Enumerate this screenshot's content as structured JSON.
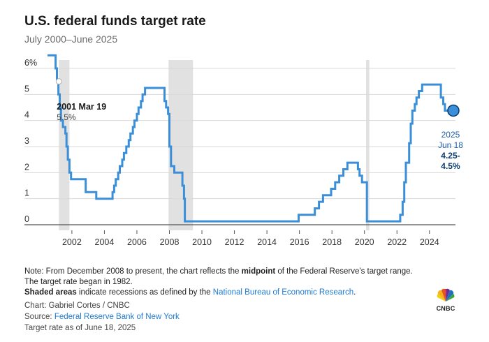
{
  "header": {
    "title": "U.S. federal funds target rate",
    "subtitle": "July 2000–June 2025"
  },
  "chart_data": {
    "type": "line",
    "title": "U.S. federal funds target rate",
    "subtitle": "July 2000–June 2025",
    "xlabel": "",
    "ylabel": "",
    "x_ticks": [
      "2002",
      "2004",
      "2006",
      "2008",
      "2010",
      "2012",
      "2014",
      "2016",
      "2018",
      "2020",
      "2022",
      "2024"
    ],
    "y_ticks": [
      "0",
      "1",
      "2",
      "3",
      "4",
      "5",
      "6%"
    ],
    "xlim": [
      2000.5,
      2025.6
    ],
    "ylim": [
      0,
      6.5
    ],
    "grid": "horizontal",
    "line_color": "#3a8fd8",
    "recession_color": "#e1e1e1",
    "recessions": [
      [
        2001.2,
        2001.85
      ],
      [
        2007.95,
        2009.45
      ],
      [
        2020.1,
        2020.3
      ]
    ],
    "series": [
      {
        "values": [
          [
            2000.5,
            6.5
          ],
          [
            2001.0,
            6.0
          ],
          [
            2001.08,
            5.5
          ],
          [
            2001.17,
            5.0
          ],
          [
            2001.25,
            4.5
          ],
          [
            2001.33,
            4.0
          ],
          [
            2001.45,
            3.75
          ],
          [
            2001.6,
            3.5
          ],
          [
            2001.67,
            3.0
          ],
          [
            2001.75,
            2.5
          ],
          [
            2001.85,
            2.0
          ],
          [
            2001.95,
            1.75
          ],
          [
            2002.85,
            1.25
          ],
          [
            2003.5,
            1.0
          ],
          [
            2004.5,
            1.25
          ],
          [
            2004.6,
            1.5
          ],
          [
            2004.7,
            1.75
          ],
          [
            2004.85,
            2.0
          ],
          [
            2004.95,
            2.25
          ],
          [
            2005.1,
            2.5
          ],
          [
            2005.2,
            2.75
          ],
          [
            2005.35,
            3.0
          ],
          [
            2005.5,
            3.25
          ],
          [
            2005.6,
            3.5
          ],
          [
            2005.75,
            3.75
          ],
          [
            2005.85,
            4.0
          ],
          [
            2006.0,
            4.25
          ],
          [
            2006.1,
            4.5
          ],
          [
            2006.25,
            4.75
          ],
          [
            2006.35,
            5.0
          ],
          [
            2006.5,
            5.25
          ],
          [
            2007.7,
            4.75
          ],
          [
            2007.8,
            4.5
          ],
          [
            2007.92,
            4.25
          ],
          [
            2008.0,
            3.0
          ],
          [
            2008.1,
            2.25
          ],
          [
            2008.3,
            2.0
          ],
          [
            2008.8,
            1.5
          ],
          [
            2008.9,
            1.0
          ],
          [
            2008.95,
            0.13
          ],
          [
            2015.95,
            0.38
          ],
          [
            2016.95,
            0.63
          ],
          [
            2017.2,
            0.88
          ],
          [
            2017.45,
            1.13
          ],
          [
            2017.95,
            1.38
          ],
          [
            2018.2,
            1.63
          ],
          [
            2018.45,
            1.88
          ],
          [
            2018.7,
            2.13
          ],
          [
            2018.95,
            2.38
          ],
          [
            2019.6,
            2.13
          ],
          [
            2019.7,
            1.88
          ],
          [
            2019.85,
            1.63
          ],
          [
            2020.15,
            0.13
          ],
          [
            2022.2,
            0.38
          ],
          [
            2022.35,
            0.88
          ],
          [
            2022.45,
            1.63
          ],
          [
            2022.55,
            2.38
          ],
          [
            2022.75,
            3.13
          ],
          [
            2022.85,
            3.88
          ],
          [
            2022.95,
            4.38
          ],
          [
            2023.1,
            4.63
          ],
          [
            2023.2,
            4.88
          ],
          [
            2023.35,
            5.13
          ],
          [
            2023.55,
            5.38
          ],
          [
            2024.7,
            4.88
          ],
          [
            2024.85,
            4.63
          ],
          [
            2024.95,
            4.38
          ],
          [
            2025.47,
            4.38
          ]
        ]
      }
    ],
    "annotations": {
      "start": {
        "date": "2001 Mar 19",
        "value": "5.5%",
        "x": 2001.2,
        "y": 5.5
      },
      "end": {
        "year": "2025",
        "date": "Jun 18",
        "value_line1": "4.25-",
        "value_line2": "4.5%",
        "x": 2025.47,
        "y": 4.38
      }
    }
  },
  "notes": {
    "note_prefix": "Note: From December 2008 to present, the chart reflects the ",
    "note_bold": "midpoint",
    "note_suffix": " of the Federal Reserve's target range. The target rate began in 1982.",
    "shaded_bold": "Shaded areas",
    "shaded_text": " indicate recessions as defined by the ",
    "shaded_link": "National Bureau of Economic Research",
    "shaded_end": "."
  },
  "credits": {
    "chart_by": "Chart: Gabriel Cortes / CNBC",
    "source_prefix": "Source: ",
    "source_link": "Federal Reserve Bank of New York",
    "as_of": "Target rate as of June 18, 2025"
  },
  "logo": {
    "name": "CNBC",
    "icon": "peacock-logo-icon"
  }
}
